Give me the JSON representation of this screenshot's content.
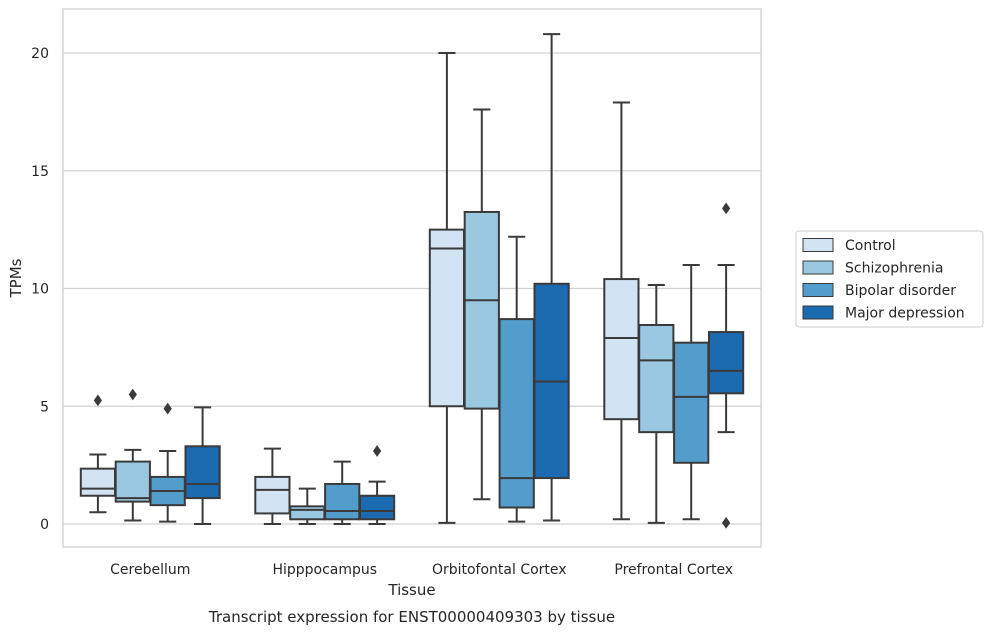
{
  "chart_data": {
    "type": "box",
    "caption": "Transcript expression for ENST00000409303 by tissue",
    "xlabel": "Tissue",
    "ylabel": "TPMs",
    "ylim": [
      -1,
      21.9
    ],
    "yticks": [
      0,
      5,
      10,
      15,
      20
    ],
    "grid": "horizontal",
    "legend_position": "right",
    "categories": [
      "Cerebellum",
      "Hipppocampus",
      "Orbitofontal Cortex",
      "Prefrontal Cortex"
    ],
    "series": [
      {
        "name": "Control",
        "color": "#d2e3f3",
        "boxes": [
          {
            "whisker_low": 0.5,
            "q1": 1.2,
            "median": 1.5,
            "q3": 2.35,
            "whisker_high": 2.95,
            "outliers": [
              5.25
            ]
          },
          {
            "whisker_low": 0.0,
            "q1": 0.45,
            "median": 1.45,
            "q3": 2.0,
            "whisker_high": 3.2,
            "outliers": []
          },
          {
            "whisker_low": 0.05,
            "q1": 5.0,
            "median": 11.7,
            "q3": 12.5,
            "whisker_high": 20.0,
            "outliers": []
          },
          {
            "whisker_low": 0.2,
            "q1": 4.45,
            "median": 7.9,
            "q3": 10.4,
            "whisker_high": 17.9,
            "outliers": []
          }
        ]
      },
      {
        "name": "Schizophrenia",
        "color": "#9ac8e0",
        "boxes": [
          {
            "whisker_low": 0.15,
            "q1": 0.95,
            "median": 1.1,
            "q3": 2.65,
            "whisker_high": 3.15,
            "outliers": [
              5.5
            ]
          },
          {
            "whisker_low": 0.0,
            "q1": 0.2,
            "median": 0.6,
            "q3": 0.75,
            "whisker_high": 1.5,
            "outliers": []
          },
          {
            "whisker_low": 1.05,
            "q1": 4.9,
            "median": 9.5,
            "q3": 13.25,
            "whisker_high": 17.6,
            "outliers": []
          },
          {
            "whisker_low": 0.05,
            "q1": 3.9,
            "median": 6.95,
            "q3": 8.45,
            "whisker_high": 10.15,
            "outliers": []
          }
        ]
      },
      {
        "name": "Bipolar disorder",
        "color": "#529dcc",
        "boxes": [
          {
            "whisker_low": 0.1,
            "q1": 0.8,
            "median": 1.4,
            "q3": 2.0,
            "whisker_high": 3.1,
            "outliers": [
              4.9
            ]
          },
          {
            "whisker_low": 0.0,
            "q1": 0.2,
            "median": 0.55,
            "q3": 1.7,
            "whisker_high": 2.65,
            "outliers": []
          },
          {
            "whisker_low": 0.1,
            "q1": 0.7,
            "median": 1.95,
            "q3": 8.7,
            "whisker_high": 12.2,
            "outliers": []
          },
          {
            "whisker_low": 0.2,
            "q1": 2.6,
            "median": 5.4,
            "q3": 7.7,
            "whisker_high": 11.0,
            "outliers": []
          }
        ]
      },
      {
        "name": "Major depression",
        "color": "#1c6aaf",
        "boxes": [
          {
            "whisker_low": 0.0,
            "q1": 1.1,
            "median": 1.7,
            "q3": 3.3,
            "whisker_high": 4.95,
            "outliers": []
          },
          {
            "whisker_low": 0.0,
            "q1": 0.2,
            "median": 0.55,
            "q3": 1.2,
            "whisker_high": 1.8,
            "outliers": [
              3.1
            ]
          },
          {
            "whisker_low": 0.15,
            "q1": 1.95,
            "median": 6.05,
            "q3": 10.2,
            "whisker_high": 20.8,
            "outliers": []
          },
          {
            "whisker_low": 3.9,
            "q1": 5.55,
            "median": 6.5,
            "q3": 8.15,
            "whisker_high": 11.0,
            "outliers": [
              13.4,
              0.05
            ]
          }
        ]
      }
    ]
  }
}
